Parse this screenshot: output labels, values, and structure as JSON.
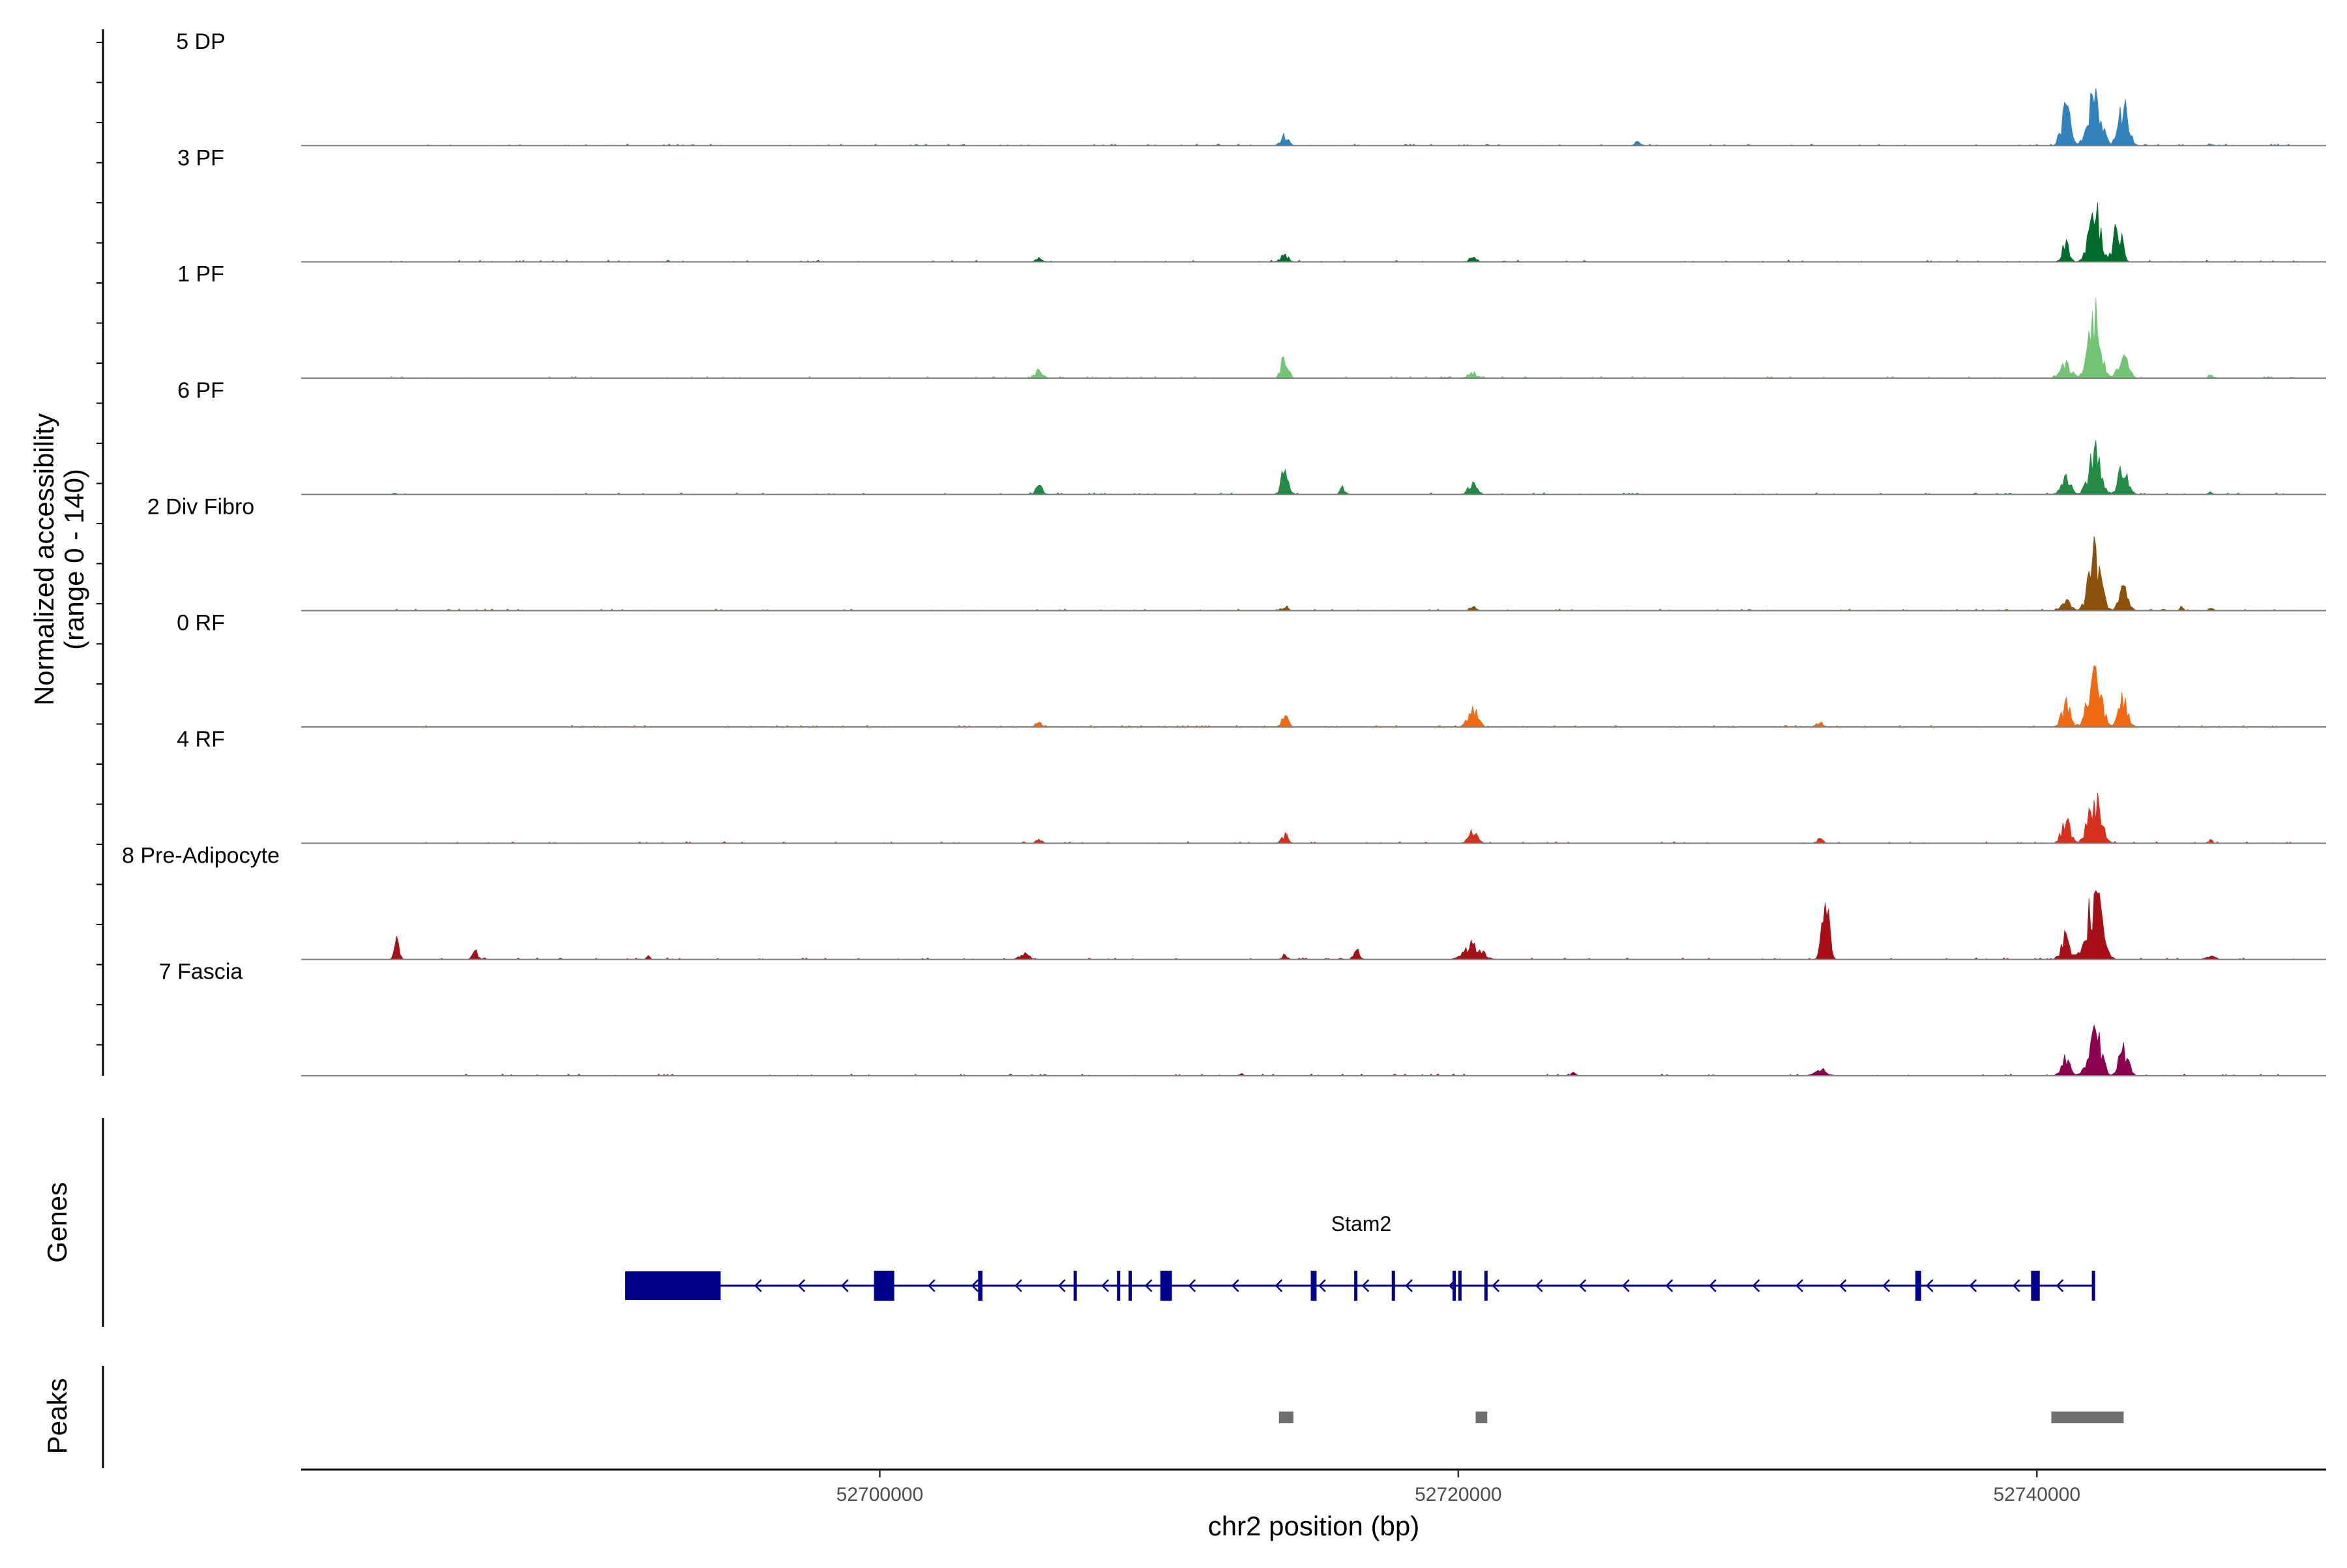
{
  "chart_data": {
    "type": "area",
    "title": "",
    "xlabel": "chr2 position (bp)",
    "xlim": [
      52680000,
      52750000
    ],
    "x_ticks": [
      52700000,
      52720000,
      52740000
    ],
    "x_tick_labels": [
      "52700000",
      "52720000",
      "52740000"
    ],
    "ylabel": "Normalized accessibility",
    "ylabel_range": "(range 0 - 140)",
    "ylim": [
      0,
      140
    ],
    "genes_label": "Genes",
    "peaks_label": "Peaks",
    "tracks": [
      {
        "name": "5 DP",
        "color": "#3182bd",
        "peaks": [
          [
            52714000,
            14,
            130
          ],
          [
            52726200,
            8,
            90
          ],
          [
            52742000,
            67,
            220
          ],
          [
            52741000,
            50,
            150
          ],
          [
            52743000,
            50,
            170
          ],
          [
            52746000,
            3,
            60
          ]
        ]
      },
      {
        "name": "3 PF",
        "color": "#006d2c",
        "peaks": [
          [
            52705500,
            5,
            100
          ],
          [
            52714000,
            9,
            140
          ],
          [
            52720500,
            6,
            130
          ],
          [
            52742000,
            75,
            200
          ],
          [
            52741000,
            30,
            120
          ],
          [
            52742800,
            50,
            140
          ]
        ]
      },
      {
        "name": "1 PF",
        "color": "#74c476",
        "peaks": [
          [
            52705500,
            10,
            140
          ],
          [
            52714000,
            32,
            110
          ],
          [
            52720500,
            8,
            150
          ],
          [
            52742000,
            90,
            200
          ],
          [
            52741000,
            20,
            180
          ],
          [
            52743000,
            40,
            160
          ],
          [
            52746000,
            6,
            60
          ]
        ]
      },
      {
        "name": "6 PF",
        "color": "#238b45",
        "peaks": [
          [
            52705500,
            15,
            100
          ],
          [
            52714000,
            38,
            120
          ],
          [
            52716000,
            10,
            80
          ],
          [
            52720500,
            14,
            150
          ],
          [
            52742000,
            60,
            200
          ],
          [
            52741000,
            25,
            150
          ],
          [
            52743000,
            45,
            150
          ],
          [
            52746000,
            6,
            60
          ]
        ]
      },
      {
        "name": "2 Div Fibro",
        "color": "#8c510a",
        "peaks": [
          [
            52714000,
            7,
            100
          ],
          [
            52720500,
            7,
            100
          ],
          [
            52742000,
            80,
            200
          ],
          [
            52741000,
            15,
            150
          ],
          [
            52743000,
            30,
            150
          ],
          [
            52745000,
            6,
            60
          ],
          [
            52746000,
            6,
            60
          ]
        ]
      },
      {
        "name": "0 RF",
        "color": "#f16913",
        "peaks": [
          [
            52705500,
            6,
            120
          ],
          [
            52714000,
            16,
            110
          ],
          [
            52720500,
            22,
            170
          ],
          [
            52732500,
            6,
            120
          ],
          [
            52742000,
            84,
            210
          ],
          [
            52741000,
            30,
            150
          ],
          [
            52743000,
            40,
            150
          ]
        ]
      },
      {
        "name": "4 RF",
        "color": "#d7301f",
        "peaks": [
          [
            52705500,
            5,
            100
          ],
          [
            52714000,
            12,
            100
          ],
          [
            52720500,
            17,
            150
          ],
          [
            52732500,
            6,
            100
          ],
          [
            52742000,
            66,
            210
          ],
          [
            52741000,
            30,
            150
          ],
          [
            52746000,
            6,
            60
          ]
        ]
      },
      {
        "name": "8 Pre-Adipocyte",
        "color": "#a50f15",
        "peaks": [
          [
            52683300,
            24,
            80
          ],
          [
            52686000,
            15,
            80
          ],
          [
            52692000,
            5,
            60
          ],
          [
            52705000,
            10,
            150
          ],
          [
            52714000,
            8,
            80
          ],
          [
            52716500,
            12,
            100
          ],
          [
            52720500,
            20,
            300
          ],
          [
            52732700,
            73,
            120
          ],
          [
            52742000,
            85,
            250
          ],
          [
            52741000,
            30,
            150
          ],
          [
            52746000,
            6,
            150
          ]
        ]
      },
      {
        "name": "7 Fascia",
        "color": "#8c0050",
        "peaks": [
          [
            52712500,
            3,
            80
          ],
          [
            52724000,
            4,
            100
          ],
          [
            52732500,
            10,
            200
          ],
          [
            52742000,
            64,
            210
          ],
          [
            52741000,
            25,
            150
          ],
          [
            52743000,
            40,
            150
          ]
        ]
      }
    ],
    "genes": [
      {
        "name": "Stam2",
        "strand": "-",
        "start": 52691200,
        "end": 52742000,
        "exons": [
          [
            52691200,
            52694500
          ],
          [
            52699800,
            52700500
          ],
          [
            52703400,
            52703550
          ],
          [
            52706700,
            52706760
          ],
          [
            52708200,
            52708300
          ],
          [
            52708600,
            52708700
          ],
          [
            52709700,
            52710100
          ],
          [
            52714900,
            52715100
          ],
          [
            52716400,
            52716500
          ],
          [
            52717700,
            52717780
          ],
          [
            52719800,
            52719900
          ],
          [
            52720000,
            52720100
          ],
          [
            52720900,
            52721000
          ],
          [
            52735800,
            52736000
          ],
          [
            52739800,
            52740100
          ],
          [
            52741900,
            52742000
          ]
        ]
      }
    ],
    "peak_regions": [
      [
        52713800,
        52714300
      ],
      [
        52720600,
        52721000
      ],
      [
        52740500,
        52743000
      ]
    ]
  }
}
